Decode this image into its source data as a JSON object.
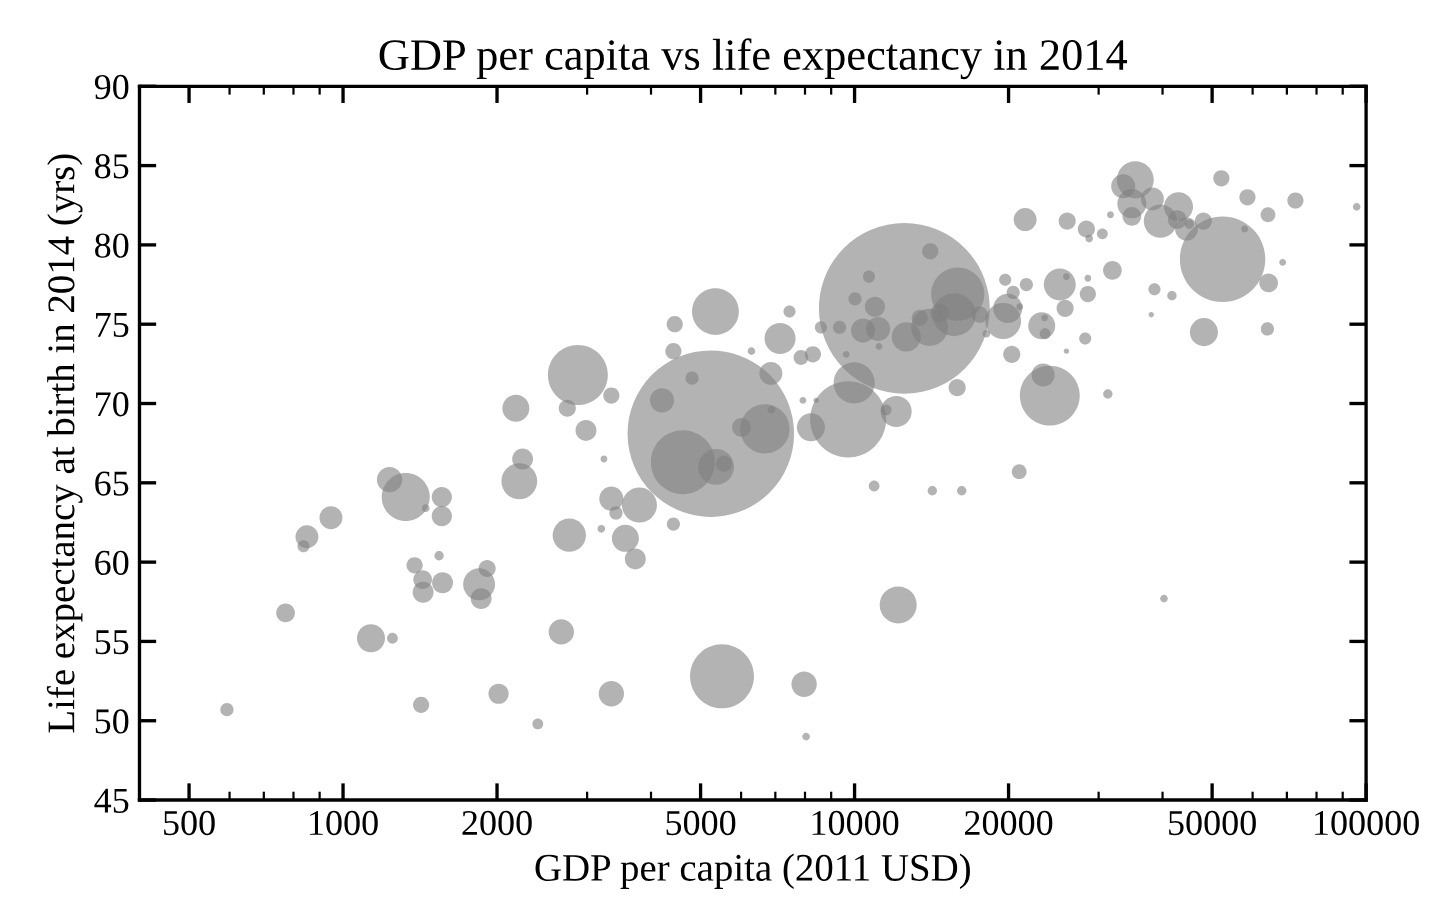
{
  "chart_data": {
    "type": "bubble",
    "title": "GDP per capita vs life expectancy in 2014",
    "xlabel": "GDP per capita (2011 USD)",
    "ylabel": "Life expectancy at birth in 2014 (yrs)",
    "log": "x",
    "grid": false,
    "xlim": [
      400,
      100000
    ],
    "xticks": [
      500,
      1000,
      2000,
      5000,
      10000,
      20000,
      50000,
      100000
    ],
    "ylim": [
      45,
      90
    ],
    "yticks": [
      45,
      50,
      55,
      60,
      65,
      70,
      75,
      80,
      85,
      90
    ],
    "series": [
      {
        "color": "#808080",
        "x": [
          593,
          772,
          850,
          837,
          947,
          1134,
          1249,
          1233,
          1326,
          1451,
          1560,
          1560,
          1380,
          1541,
          1431,
          1434,
          1565,
          1845,
          1913,
          1862,
          1421,
          2014,
          2403,
          2671,
          2769,
          2211,
          2244,
          2177,
          2744,
          2985,
          2878,
          3346,
          3236,
          3346,
          3416,
          3797,
          3198,
          3564,
          3727,
          4424,
          4451,
          4424,
          5346,
          4203,
          4811,
          5236,
          4616,
          5361,
          5557,
          6010,
          6678,
          6880,
          6861,
          6286,
          7151,
          7461,
          7856,
          8290,
          7925,
          8412,
          8217,
          9716,
          9982,
          9630,
          8594,
          9346,
          10020,
          10670,
          10960,
          10390,
          11120,
          12510,
          14060,
          12620,
          14020,
          15660,
          15910,
          14670,
          13410,
          11160,
          15870,
          12060,
          11530,
          10920,
          14190,
          16200,
          12170,
          5506,
          7969,
          3346,
          8040,
          17560,
          18100,
          19700,
          20420,
          19930,
          19520,
          21670,
          21030,
          20290,
          21550,
          20980,
          24080,
          23370,
          23220,
          23580,
          23520,
          25190,
          25800,
          25950,
          26040,
          25950,
          28240,
          28580,
          28580,
          28390,
          28750,
          30510,
          31270,
          31920,
          31640,
          35380,
          33510,
          34840,
          34840,
          38220,
          39620,
          42980,
          42750,
          44560,
          48080,
          45120,
          52120,
          52410,
          58620,
          64300,
          72750,
          95850,
          57880,
          68680,
          64480,
          64130,
          48190,
          38570,
          41730,
          38020,
          40260
        ],
        "values": [
          50.7,
          56.8,
          61.6,
          61.0,
          62.8,
          55.2,
          55.2,
          65.2,
          64.1,
          63.4,
          64.1,
          62.9,
          59.8,
          60.4,
          58.9,
          58.1,
          58.7,
          58.6,
          59.6,
          57.7,
          51.0,
          51.7,
          49.8,
          55.6,
          61.7,
          65.1,
          66.5,
          69.7,
          69.7,
          68.3,
          71.8,
          70.5,
          66.5,
          64.0,
          63.1,
          63.6,
          62.1,
          61.5,
          60.2,
          62.4,
          75.0,
          73.3,
          75.8,
          70.2,
          71.6,
          68.1,
          66.3,
          66.0,
          66.2,
          68.5,
          68.4,
          69.6,
          71.9,
          73.3,
          74.1,
          75.8,
          72.9,
          73.1,
          70.2,
          70.2,
          68.5,
          69.0,
          71.3,
          73.1,
          74.8,
          74.8,
          76.6,
          78.0,
          76.1,
          74.6,
          74.7,
          76.0,
          79.6,
          74.2,
          74.8,
          75.6,
          76.9,
          75.7,
          75.4,
          73.6,
          71.0,
          69.5,
          69.6,
          64.8,
          64.5,
          64.5,
          57.3,
          52.8,
          52.3,
          51.7,
          49.0,
          75.6,
          74.4,
          77.8,
          77.0,
          76.0,
          75.2,
          77.5,
          76.1,
          73.1,
          81.6,
          65.7,
          70.5,
          71.8,
          74.9,
          74.4,
          75.4,
          77.5,
          76.0,
          73.3,
          81.5,
          78.0,
          74.1,
          76.9,
          77.9,
          81.0,
          80.4,
          80.7,
          70.6,
          78.4,
          81.9,
          84.1,
          83.7,
          82.6,
          81.8,
          82.9,
          81.5,
          82.4,
          81.6,
          81.0,
          81.5,
          81.3,
          84.2,
          79.1,
          83.0,
          81.9,
          82.8,
          82.4,
          81.0,
          78.9,
          77.6,
          74.7,
          74.5,
          77.2,
          76.8,
          75.6,
          57.7
        ],
        "sizes": [
          0.006,
          0.012,
          0.018,
          0.005,
          0.018,
          0.027,
          0.004,
          0.022,
          0.079,
          0.002,
          0.014,
          0.014,
          0.009,
          0.003,
          0.012,
          0.015,
          0.015,
          0.035,
          0.01,
          0.015,
          0.009,
          0.014,
          0.004,
          0.022,
          0.038,
          0.044,
          0.015,
          0.025,
          0.01,
          0.015,
          0.123,
          0.009,
          0.0016,
          0.02,
          0.006,
          0.042,
          0.002,
          0.025,
          0.015,
          0.006,
          0.009,
          0.009,
          0.075,
          0.02,
          0.006,
          0.95,
          0.14,
          0.044,
          0.009,
          0.012,
          0.083,
          0.002,
          0.018,
          0.002,
          0.033,
          0.005,
          0.0075,
          0.009,
          0.0016,
          0.001,
          0.027,
          0.198,
          0.058,
          0.0016,
          0.005,
          0.006,
          0.006,
          0.005,
          0.014,
          0.02,
          0.02,
          1,
          0.009,
          0.029,
          0.047,
          0.063,
          0.097,
          0.012,
          0.009,
          0.0016,
          0.01,
          0.033,
          0.004,
          0.004,
          0.003,
          0.003,
          0.047,
          0.14,
          0.022,
          0.022,
          0.002,
          0.009,
          0.002,
          0.005,
          0.006,
          0.029,
          0.044,
          0.006,
          0.0016,
          0.01,
          0.018,
          0.0075,
          0.123,
          0.018,
          0.025,
          0.004,
          0.0016,
          0.035,
          0.01,
          0.001,
          0.01,
          0.0016,
          0.005,
          0.009,
          0.0016,
          0.01,
          0.002,
          0.004,
          0.003,
          0.012,
          0.0016,
          0.047,
          0.02,
          0.029,
          0.012,
          0.018,
          0.038,
          0.029,
          0.012,
          0.018,
          0.01,
          0.003,
          0.009,
          0.25,
          0.009,
          0.0075,
          0.009,
          0.002,
          0.0016,
          0.0016,
          0.012,
          0.006,
          0.027,
          0.005,
          0.003,
          0.001,
          0.002
        ]
      }
    ]
  }
}
